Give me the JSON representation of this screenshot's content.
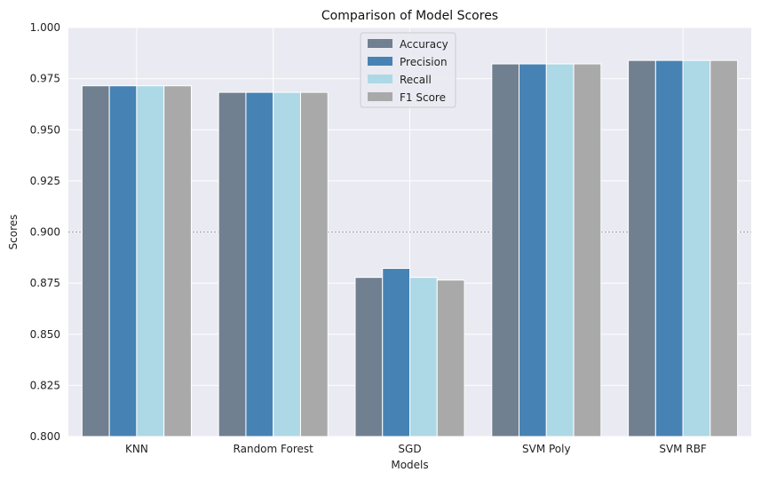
{
  "chart_data": {
    "type": "bar",
    "title": "Comparison of Model Scores",
    "xlabel": "Models",
    "ylabel": "Scores",
    "ylim": [
      0.8,
      1.0
    ],
    "yticks": [
      "0.800",
      "0.825",
      "0.850",
      "0.875",
      "0.900",
      "0.925",
      "0.950",
      "0.975",
      "1.000"
    ],
    "ytick_values": [
      0.8,
      0.825,
      0.85,
      0.875,
      0.9,
      0.925,
      0.95,
      0.975,
      1.0
    ],
    "reference_line": 0.9,
    "grid": true,
    "legend_position": "top-center",
    "categories": [
      "KNN",
      "Random Forest",
      "SGD",
      "SVM Poly",
      "SVM RBF"
    ],
    "series": [
      {
        "name": "Accuracy",
        "color": "#708090",
        "values": [
          0.9715,
          0.9683,
          0.8778,
          0.9822,
          0.9839
        ]
      },
      {
        "name": "Precision",
        "color": "#4682b4",
        "values": [
          0.9715,
          0.9683,
          0.8822,
          0.9822,
          0.9839
        ]
      },
      {
        "name": "Recall",
        "color": "#add8e6",
        "values": [
          0.9715,
          0.9683,
          0.8778,
          0.9822,
          0.9839
        ]
      },
      {
        "name": "F1 Score",
        "color": "#a9a9a9",
        "values": [
          0.9715,
          0.9683,
          0.8765,
          0.9822,
          0.9839
        ]
      }
    ]
  }
}
